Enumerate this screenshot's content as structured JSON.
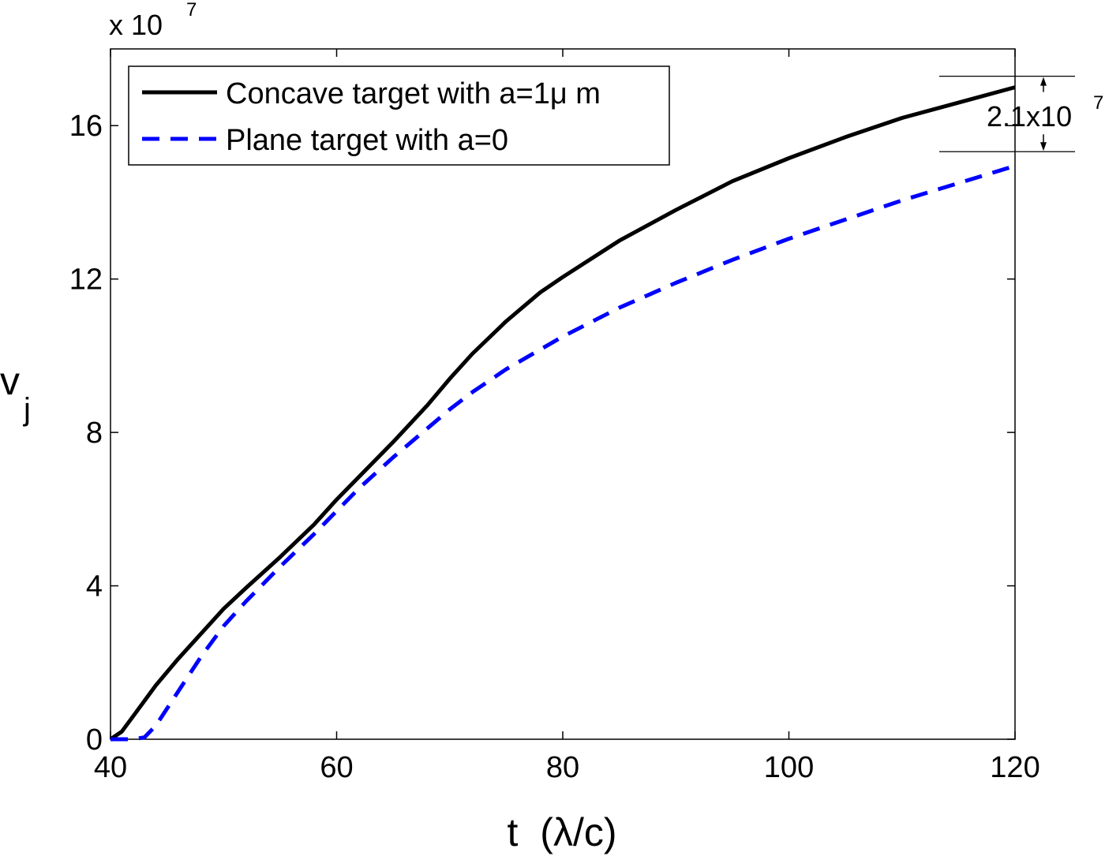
{
  "chart_data": {
    "type": "line",
    "xlabel_main": "t",
    "xlabel_unit": "(λ/c)",
    "ylabel_main": "v",
    "ylabel_sub": "j",
    "y_exponent_prefix": "x 10",
    "y_exponent_power": "7",
    "xlim": [
      40,
      120
    ],
    "ylim": [
      0,
      18
    ],
    "x_ticks": [
      40,
      60,
      80,
      100,
      120
    ],
    "y_ticks": [
      0,
      4,
      8,
      12,
      16
    ],
    "x_tick_labels": [
      "40",
      "60",
      "80",
      "100",
      "120"
    ],
    "y_tick_labels": [
      "0",
      "4",
      "8",
      "12",
      "16"
    ],
    "grid": false,
    "legend_position": "top-left",
    "series": [
      {
        "name": "Concave target with a=1μ m",
        "color": "#000000",
        "style": "solid",
        "x": [
          40,
          41,
          42,
          43,
          44,
          45,
          46,
          48,
          50,
          52,
          55,
          58,
          60,
          62,
          65,
          68,
          70,
          72,
          75,
          78,
          80,
          85,
          90,
          95,
          100,
          105,
          110,
          115,
          120
        ],
        "y": [
          0,
          0.2,
          0.6,
          1.0,
          1.4,
          1.75,
          2.1,
          2.75,
          3.4,
          3.95,
          4.75,
          5.6,
          6.25,
          6.85,
          7.75,
          8.7,
          9.4,
          10.05,
          10.9,
          11.65,
          12.05,
          13.0,
          13.8,
          14.55,
          15.15,
          15.7,
          16.2,
          16.6,
          17.0
        ]
      },
      {
        "name": "Plane target with a=0",
        "color": "#0000ff",
        "style": "dashed",
        "x": [
          40,
          41,
          42,
          43,
          44,
          45,
          46,
          48,
          50,
          52,
          55,
          58,
          60,
          62,
          65,
          68,
          70,
          72,
          75,
          80,
          85,
          90,
          95,
          100,
          105,
          110,
          115,
          120
        ],
        "y": [
          0,
          0,
          0,
          0.05,
          0.35,
          0.8,
          1.25,
          2.15,
          2.95,
          3.6,
          4.5,
          5.35,
          5.95,
          6.55,
          7.35,
          8.1,
          8.6,
          9.05,
          9.65,
          10.5,
          11.25,
          11.9,
          12.5,
          13.05,
          13.55,
          14.05,
          14.5,
          14.95
        ]
      }
    ],
    "annotations": [
      {
        "text_prefix": "2.1x10",
        "text_power": "7",
        "x": 120,
        "y_top": 17.0,
        "y_bottom": 14.95
      }
    ]
  }
}
